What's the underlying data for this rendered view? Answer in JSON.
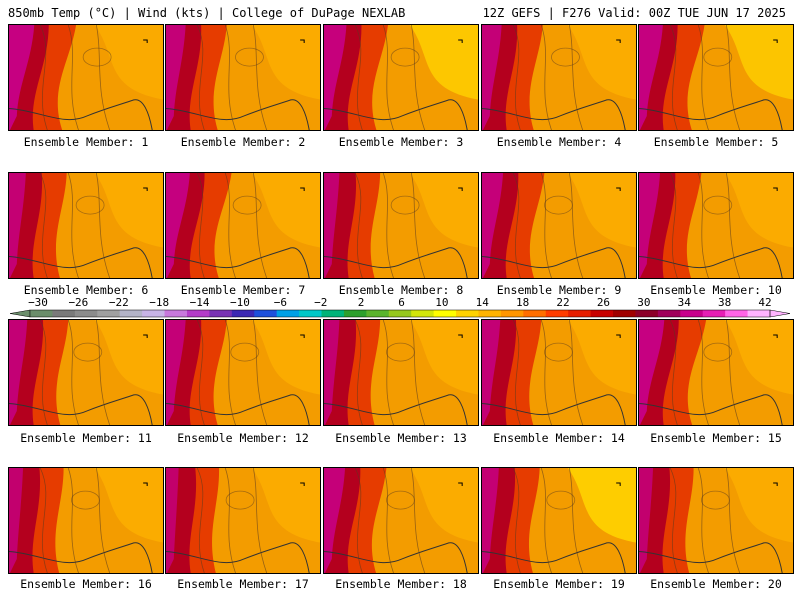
{
  "header": {
    "left": "850mb Temp (°C) | Wind (kts) | College of DuPage NEXLAB",
    "right": "12Z GEFS | F276 Valid: 00Z TUE JUN 17 2025"
  },
  "members": [
    {
      "label": "Ensemble Member: 1",
      "ridge": 0.55,
      "hot_west": 0.9,
      "cool_east": 0.15
    },
    {
      "label": "Ensemble Member: 2",
      "ridge": 0.45,
      "hot_west": 0.7,
      "cool_east": 0.2
    },
    {
      "label": "Ensemble Member: 3",
      "ridge": 0.4,
      "hot_west": 0.8,
      "cool_east": 0.6
    },
    {
      "label": "Ensemble Member: 4",
      "ridge": 0.45,
      "hot_west": 0.7,
      "cool_east": 0.35
    },
    {
      "label": "Ensemble Member: 5",
      "ridge": 0.35,
      "hot_west": 0.85,
      "cool_east": 0.55
    },
    {
      "label": "Ensemble Member: 6",
      "ridge": 0.4,
      "hot_west": 0.6,
      "cool_east": 0.2
    },
    {
      "label": "Ensemble Member: 7",
      "ridge": 0.4,
      "hot_west": 0.85,
      "cool_east": 0.2
    },
    {
      "label": "Ensemble Member: 8",
      "ridge": 0.4,
      "hot_west": 0.55,
      "cool_east": 0.3
    },
    {
      "label": "Ensemble Member: 9",
      "ridge": 0.3,
      "hot_west": 0.75,
      "cool_east": 0.25
    },
    {
      "label": "Ensemble Member: 10",
      "ridge": 0.35,
      "hot_west": 0.75,
      "cool_east": 0.25
    },
    {
      "label": "Ensemble Member: 11",
      "ridge": 0.35,
      "hot_west": 0.65,
      "cool_east": 0.2
    },
    {
      "label": "Ensemble Member: 12",
      "ridge": 0.35,
      "hot_west": 0.7,
      "cool_east": 0.2
    },
    {
      "label": "Ensemble Member: 13",
      "ridge": 0.3,
      "hot_west": 0.55,
      "cool_east": 0.2
    },
    {
      "label": "Ensemble Member: 14",
      "ridge": 0.3,
      "hot_west": 0.65,
      "cool_east": 0.2
    },
    {
      "label": "Ensemble Member: 15",
      "ridge": 0.35,
      "hot_west": 0.9,
      "cool_east": 0.2
    },
    {
      "label": "Ensemble Member: 16",
      "ridge": 0.3,
      "hot_west": 0.5,
      "cool_east": 0.3
    },
    {
      "label": "Ensemble Member: 17",
      "ridge": 0.25,
      "hot_west": 0.45,
      "cool_east": 0.25
    },
    {
      "label": "Ensemble Member: 18",
      "ridge": 0.3,
      "hot_west": 0.75,
      "cool_east": 0.3
    },
    {
      "label": "Ensemble Member: 19",
      "ridge": 0.35,
      "hot_west": 0.6,
      "cool_east": 0.9
    },
    {
      "label": "Ensemble Member: 20",
      "ridge": 0.3,
      "hot_west": 0.5,
      "cool_east": 0.25
    }
  ],
  "colorbar": {
    "ticks": [
      "−30",
      "−26",
      "−22",
      "−18",
      "−14",
      "−10",
      "−6",
      "−2",
      "2",
      "6",
      "10",
      "14",
      "18",
      "22",
      "26",
      "30",
      "34",
      "38",
      "42"
    ],
    "colors": [
      "#6b8e6b",
      "#7a7a7a",
      "#8c8c8c",
      "#a0a0a0",
      "#b4b4c8",
      "#c8b4e6",
      "#c878dc",
      "#b43cc8",
      "#7832b4",
      "#3c28b4",
      "#1e50dc",
      "#00a0e6",
      "#00c8c8",
      "#00b478",
      "#2ca02c",
      "#5ab42c",
      "#96c81e",
      "#d2e60a",
      "#ffff00",
      "#ffd200",
      "#ffb400",
      "#ff9600",
      "#ff6e00",
      "#ff3c00",
      "#e61e00",
      "#c80000",
      "#a00000",
      "#8c0028",
      "#a0005a",
      "#c8008c",
      "#e61eb4",
      "#ff64e6",
      "#ffb4ff"
    ]
  },
  "colors": {
    "map_bg": "#f39c00",
    "warm": "#ffb400",
    "hot": "#e63c00",
    "very_hot": "#b4001e",
    "extreme": "#c8008c",
    "cool": "#ffd200",
    "coast_line": "#333333"
  }
}
